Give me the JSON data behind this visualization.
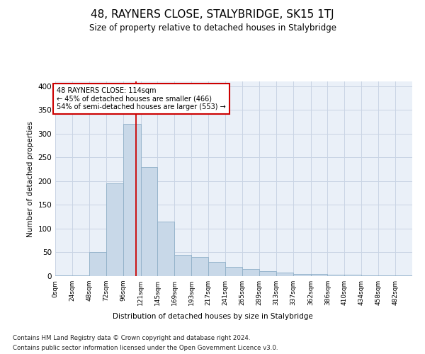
{
  "title": "48, RAYNERS CLOSE, STALYBRIDGE, SK15 1TJ",
  "subtitle": "Size of property relative to detached houses in Stalybridge",
  "xlabel": "Distribution of detached houses by size in Stalybridge",
  "ylabel": "Number of detached properties",
  "property_label": "48 RAYNERS CLOSE: 114sqm",
  "pct_smaller": 45,
  "count_smaller": 466,
  "pct_larger": 54,
  "count_larger": 553,
  "bin_edges": [
    0,
    24,
    48,
    72,
    96,
    121,
    145,
    169,
    193,
    217,
    241,
    265,
    289,
    313,
    337,
    362,
    386,
    410,
    434,
    458,
    482,
    506
  ],
  "bar_heights": [
    2,
    2,
    50,
    195,
    320,
    230,
    115,
    45,
    40,
    30,
    20,
    15,
    10,
    8,
    5,
    5,
    3,
    3,
    2,
    2,
    2
  ],
  "bar_color": "#c8d8e8",
  "bar_edge_color": "#8fafc8",
  "grid_color": "#c8d4e4",
  "bg_color": "#eaf0f8",
  "annotation_box_color": "#ffffff",
  "annotation_box_edge": "#cc0000",
  "vline_color": "#cc0000",
  "vline_x": 114,
  "ylim": [
    0,
    410
  ],
  "yticks": [
    0,
    50,
    100,
    150,
    200,
    250,
    300,
    350,
    400
  ],
  "tick_labels": [
    "0sqm",
    "24sqm",
    "48sqm",
    "72sqm",
    "96sqm",
    "121sqm",
    "145sqm",
    "169sqm",
    "193sqm",
    "217sqm",
    "241sqm",
    "265sqm",
    "289sqm",
    "313sqm",
    "337sqm",
    "362sqm",
    "386sqm",
    "410sqm",
    "434sqm",
    "458sqm",
    "482sqm"
  ],
  "footer1": "Contains HM Land Registry data © Crown copyright and database right 2024.",
  "footer2": "Contains public sector information licensed under the Open Government Licence v3.0."
}
